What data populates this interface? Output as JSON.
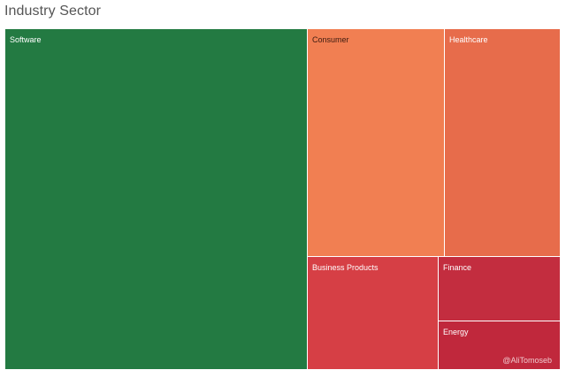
{
  "chart_data": {
    "type": "treemap",
    "title": "Industry Sector",
    "categories": [
      "Software",
      "Consumer",
      "Healthcare",
      "Business Products",
      "Finance",
      "Energy"
    ],
    "values": [
      52,
      14,
      13,
      9,
      5,
      4
    ],
    "colors": {
      "Software": "#237a42",
      "Consumer": "#f17f52",
      "Healthcare": "#e76c4b",
      "Business Products": "#d63f45",
      "Finance": "#c32d3f",
      "Energy": "#c0283c"
    },
    "label_colors": {
      "Software": "#ffffff",
      "Consumer": "#3a1a10",
      "Healthcare": "#ffffff",
      "Business Products": "#ffffff",
      "Finance": "#ffffff",
      "Energy": "#ffffff"
    }
  },
  "watermark": "@AliTomoseb"
}
